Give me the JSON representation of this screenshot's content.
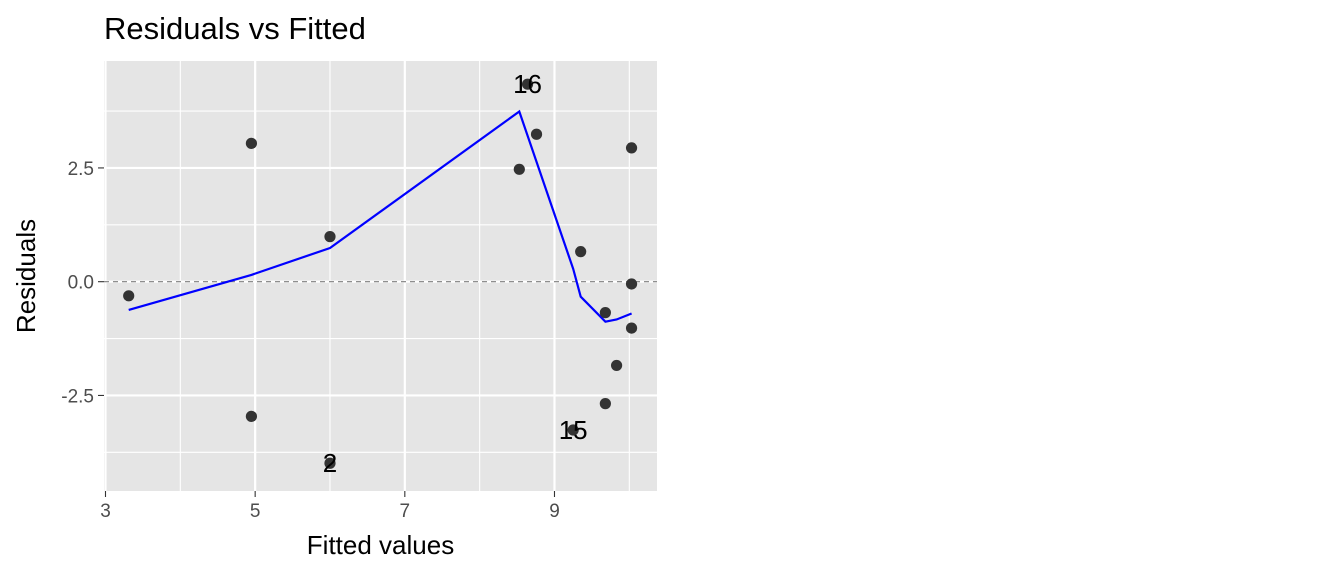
{
  "chart_data": {
    "type": "scatter",
    "title": "Residuals vs Fitted",
    "xlabel": "Fitted values",
    "ylabel": "Residuals",
    "xlim": [
      2.98,
      10.37
    ],
    "ylim": [
      -4.6,
      4.85
    ],
    "x_ticks": [
      3,
      5,
      7,
      9
    ],
    "x_tick_labels": [
      "3",
      "5",
      "7",
      "9"
    ],
    "x_minor": [
      4,
      6,
      8,
      10
    ],
    "y_ticks": [
      -2.5,
      0,
      2.5
    ],
    "y_tick_labels": [
      "-2.5",
      "0.0",
      "2.5"
    ],
    "y_minor": [
      -3.75,
      -1.25,
      1.25,
      3.75
    ],
    "grid": true,
    "reference_line": {
      "y": 0,
      "style": "dashed"
    },
    "points": [
      {
        "x": 3.31,
        "y": -0.31
      },
      {
        "x": 4.95,
        "y": 3.04
      },
      {
        "x": 4.95,
        "y": -2.96
      },
      {
        "x": 6.0,
        "y": 0.99
      },
      {
        "x": 6.0,
        "y": -3.99,
        "label": "2"
      },
      {
        "x": 8.53,
        "y": 2.47
      },
      {
        "x": 8.64,
        "y": 4.34,
        "label": "16"
      },
      {
        "x": 8.76,
        "y": 3.24
      },
      {
        "x": 9.25,
        "y": -3.26,
        "label": "15"
      },
      {
        "x": 9.35,
        "y": 0.66
      },
      {
        "x": 9.68,
        "y": -0.68
      },
      {
        "x": 9.68,
        "y": -2.68
      },
      {
        "x": 9.83,
        "y": -1.84
      },
      {
        "x": 10.03,
        "y": 2.94
      },
      {
        "x": 10.03,
        "y": -0.05
      },
      {
        "x": 10.03,
        "y": -1.02
      }
    ],
    "smooth_line": {
      "color": "#0000ff",
      "x": [
        3.31,
        4.95,
        6.0,
        8.53,
        9.25,
        9.35,
        9.68,
        9.83,
        10.03
      ],
      "y": [
        -0.62,
        0.15,
        0.74,
        3.74,
        0.28,
        -0.33,
        -0.88,
        -0.83,
        -0.7
      ]
    },
    "colors": {
      "panel_background": "#e5e5e5",
      "grid": "#ffffff",
      "point": "#333333",
      "reference_line": "#7f7f7f"
    }
  }
}
